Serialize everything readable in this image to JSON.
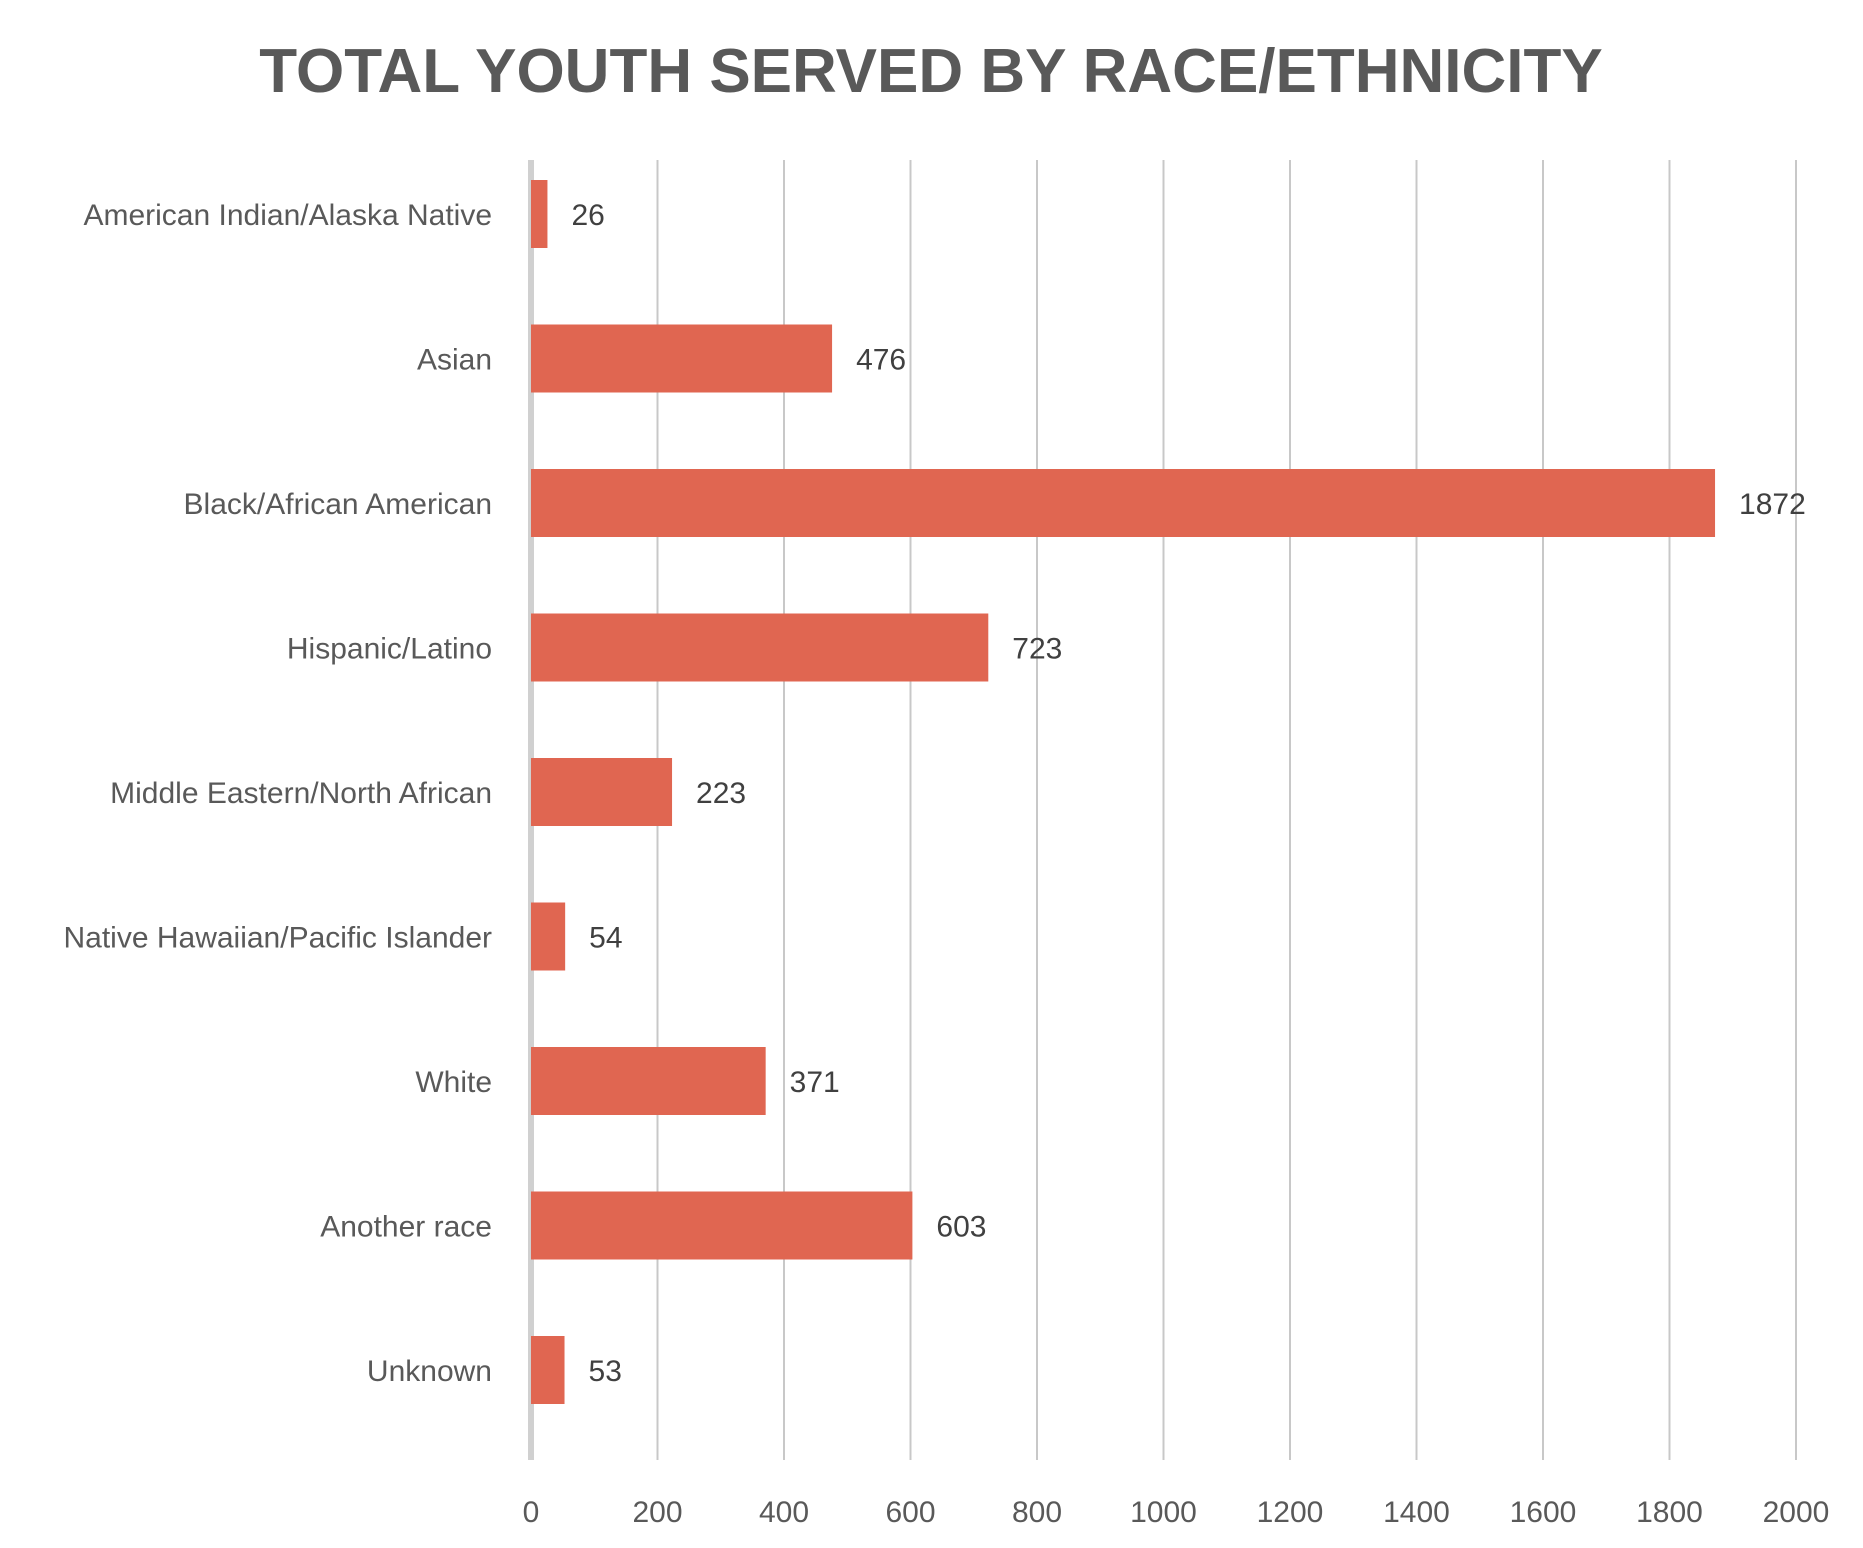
{
  "chart_data": {
    "type": "bar",
    "orientation": "horizontal",
    "title": "TOTAL YOUTH SERVED BY RACE/ETHNICITY",
    "categories": [
      "American Indian/Alaska Native",
      "Asian",
      "Black/African American",
      "Hispanic/Latino",
      "Middle Eastern/North African",
      "Native Hawaiian/Pacific Islander",
      "White",
      "Another race",
      "Unknown"
    ],
    "values": [
      26,
      476,
      1872,
      723,
      223,
      54,
      371,
      603,
      53
    ],
    "xlim": [
      0,
      2000
    ],
    "x_ticks": [
      0,
      200,
      400,
      600,
      800,
      1000,
      1200,
      1400,
      1600,
      1800,
      2000
    ],
    "data_labels": true,
    "grid": "vertical",
    "legend": "none",
    "colors": {
      "bar": "#E06651",
      "grid": "#C8C8C8",
      "axis": "#D0D0D0",
      "title": "#595959",
      "text": "#595959",
      "data_label": "#404040"
    }
  }
}
